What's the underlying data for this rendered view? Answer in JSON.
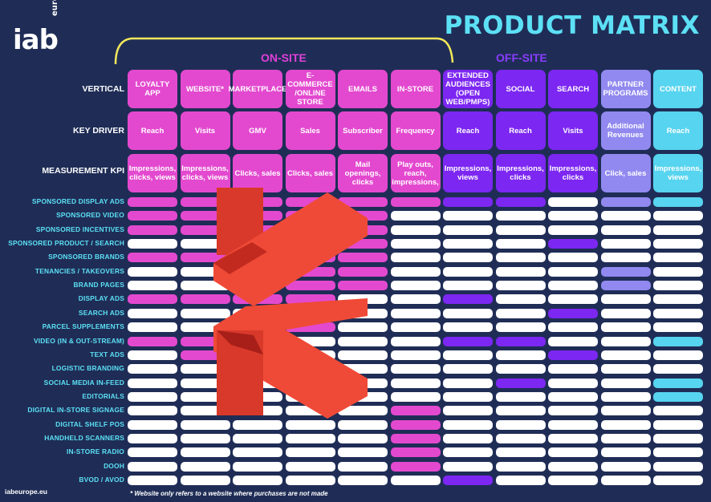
{
  "brand": {
    "logo": "iab",
    "logo_sub": "europe"
  },
  "title": "PRODUCT MATRIX",
  "groups": {
    "onsite": "ON-SITE",
    "offsite": "OFF-SITE"
  },
  "row_headers": {
    "vertical": "VERTICAL",
    "key_driver": "KEY DRIVER",
    "kpi": "MEASUREMENT KPI"
  },
  "colors": {
    "pink": "#e349cf",
    "purple": "#7c27f2",
    "lavender": "#9189ef",
    "cyan": "#57d4ef",
    "white": "#ffffff",
    "background": "#1f2d56",
    "title": "#5ce0f5"
  },
  "columns": [
    {
      "vertical": "LOYALTY APP",
      "key_driver": "Reach",
      "kpi": "Impressions, clicks, views",
      "color": "pink"
    },
    {
      "vertical": "WEBSITE*",
      "key_driver": "Visits",
      "kpi": "Impressions, clicks, views",
      "color": "pink"
    },
    {
      "vertical": "MARKETPLACE",
      "key_driver": "GMV",
      "kpi": "Clicks, sales",
      "color": "pink"
    },
    {
      "vertical": "E-COMMERCE /ONLINE STORE",
      "key_driver": "Sales",
      "kpi": "Clicks, sales",
      "color": "pink"
    },
    {
      "vertical": "EMAILS",
      "key_driver": "Subscriber",
      "kpi": "Mail openings, clicks",
      "color": "pink"
    },
    {
      "vertical": "IN-STORE",
      "key_driver": "Frequency",
      "kpi": "Play outs, reach, impressions,",
      "color": "pink"
    },
    {
      "vertical": "EXTENDED AUDIENCES (OPEN WEB/PMPS)",
      "key_driver": "Reach",
      "kpi": "Impressions, views",
      "color": "purple"
    },
    {
      "vertical": "SOCIAL",
      "key_driver": "Reach",
      "kpi": "Impressions, clicks",
      "color": "purple"
    },
    {
      "vertical": "SEARCH",
      "key_driver": "Visits",
      "kpi": "Impressions, clicks",
      "color": "purple"
    },
    {
      "vertical": "PARTNER PROGRAMS",
      "key_driver": "Additional Revenues",
      "kpi": "Click, sales",
      "color": "lavender"
    },
    {
      "vertical": "CONTENT",
      "key_driver": "Reach",
      "kpi": "Impressions, views",
      "color": "cyan"
    }
  ],
  "rows": [
    {
      "label": "SPONSORED DISPLAY ADS",
      "cells": [
        1,
        1,
        1,
        1,
        1,
        1,
        1,
        1,
        0,
        1,
        1
      ]
    },
    {
      "label": "SPONSORED VIDEO",
      "cells": [
        1,
        1,
        1,
        1,
        1,
        0,
        0,
        0,
        0,
        0,
        0
      ]
    },
    {
      "label": "SPONSORED INCENTIVES",
      "cells": [
        1,
        1,
        1,
        1,
        1,
        0,
        0,
        0,
        0,
        0,
        0
      ]
    },
    {
      "label": "SPONSORED PRODUCT / SEARCH",
      "cells": [
        0,
        0,
        1,
        1,
        1,
        0,
        0,
        0,
        1,
        0,
        0
      ]
    },
    {
      "label": "SPONSORED BRANDS",
      "cells": [
        1,
        1,
        1,
        1,
        1,
        0,
        0,
        0,
        0,
        0,
        0
      ]
    },
    {
      "label": "TENANCIES / TAKEOVERS",
      "cells": [
        0,
        0,
        1,
        1,
        1,
        0,
        0,
        0,
        0,
        1,
        0
      ]
    },
    {
      "label": "BRAND PAGES",
      "cells": [
        0,
        0,
        1,
        1,
        1,
        0,
        0,
        0,
        0,
        1,
        0
      ]
    },
    {
      "label": "DISPLAY ADS",
      "cells": [
        1,
        1,
        1,
        1,
        0,
        0,
        1,
        0,
        0,
        0,
        0
      ]
    },
    {
      "label": "SEARCH ADS",
      "cells": [
        0,
        0,
        0,
        0,
        0,
        0,
        0,
        0,
        1,
        0,
        0
      ]
    },
    {
      "label": "PARCEL SUPPLEMENTS",
      "cells": [
        0,
        0,
        0,
        1,
        0,
        0,
        0,
        0,
        0,
        0,
        0
      ]
    },
    {
      "label": "VIDEO (IN & OUT-STREAM)",
      "cells": [
        1,
        1,
        0,
        0,
        0,
        0,
        1,
        1,
        0,
        0,
        1
      ]
    },
    {
      "label": "TEXT ADS",
      "cells": [
        0,
        1,
        0,
        0,
        0,
        0,
        0,
        0,
        1,
        0,
        0
      ]
    },
    {
      "label": "LOGISTIC BRANDING",
      "cells": [
        0,
        0,
        0,
        0,
        0,
        0,
        0,
        0,
        0,
        0,
        0
      ]
    },
    {
      "label": "SOCIAL MEDIA IN-FEED",
      "cells": [
        0,
        0,
        0,
        0,
        0,
        0,
        0,
        1,
        0,
        0,
        1
      ]
    },
    {
      "label": "EDITORIALS",
      "cells": [
        0,
        0,
        0,
        0,
        0,
        0,
        0,
        0,
        0,
        0,
        1
      ]
    },
    {
      "label": "DIGITAL IN-STORE SIGNAGE",
      "cells": [
        0,
        0,
        0,
        0,
        0,
        1,
        0,
        0,
        0,
        0,
        0
      ]
    },
    {
      "label": "DIGITAL SHELF POS",
      "cells": [
        0,
        0,
        0,
        0,
        0,
        1,
        0,
        0,
        0,
        0,
        0
      ]
    },
    {
      "label": "HANDHELD SCANNERS",
      "cells": [
        0,
        0,
        0,
        0,
        0,
        1,
        0,
        0,
        0,
        0,
        0
      ]
    },
    {
      "label": "IN-STORE RADIO",
      "cells": [
        0,
        0,
        0,
        0,
        0,
        1,
        0,
        0,
        0,
        0,
        0
      ]
    },
    {
      "label": "DOOH",
      "cells": [
        0,
        0,
        0,
        0,
        0,
        1,
        0,
        0,
        0,
        0,
        0
      ]
    },
    {
      "label": "BVOD / AVOD",
      "cells": [
        0,
        0,
        0,
        0,
        0,
        0,
        1,
        0,
        0,
        0,
        0
      ]
    }
  ],
  "footer": {
    "site": "iabeurope.eu",
    "note": "* Website only refers to a website where purchases are not made"
  }
}
